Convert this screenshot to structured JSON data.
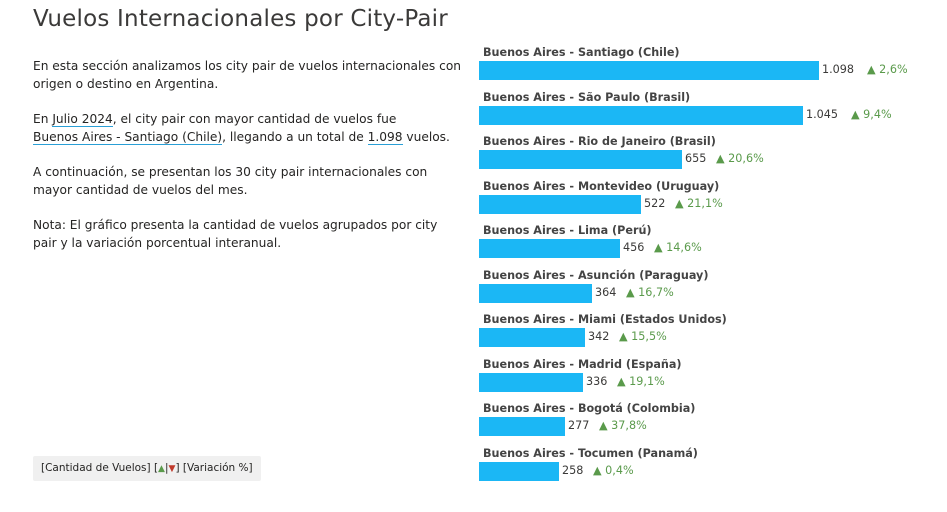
{
  "page": {
    "title": "Vuelos Internacionales por City-Pair"
  },
  "intro": {
    "p1": "En esta sección analizamos los city pair de vuelos internacionales con origen o destino en Argentina.",
    "p2_pre": "En ",
    "p2_month": "Julio 2024",
    "p2_mid": ", el city pair con mayor cantidad de vuelos fue",
    "p2_pair": "Buenos Aires - Santiago (Chile)",
    "p2_mid2": ", llegando a un total de ",
    "p2_total": "1.098",
    "p2_post": " vuelos.",
    "p3": "A continuación, se presentan los 30 city pair internacionales con mayor cantidad de vuelos del mes.",
    "p4": "Nota: El gráfico presenta la cantidad de vuelos agrupados por city pair y la variación porcentual interanual."
  },
  "legend": {
    "part1": "[Cantidad de Vuelos] [",
    "up": "▲",
    "sep": "|",
    "down": "▼",
    "part2": "] [Variación %]"
  },
  "colors": {
    "bar": "#1bb7f5",
    "positive": "#5a9a4b",
    "negative": "#c0392b"
  },
  "chart_data": {
    "type": "bar",
    "orientation": "horizontal",
    "categories": [
      "Buenos Aires - Santiago (Chile)",
      "Buenos Aires - São Paulo (Brasil)",
      "Buenos Aires - Rio de Janeiro (Brasil)",
      "Buenos Aires - Montevideo (Uruguay)",
      "Buenos Aires - Lima (Perú)",
      "Buenos Aires - Asunción (Paraguay)",
      "Buenos Aires - Miami (Estados Unidos)",
      "Buenos Aires - Madrid (España)",
      "Buenos Aires - Bogotá (Colombia)",
      "Buenos Aires - Tocumen (Panamá)"
    ],
    "values": [
      1098,
      1045,
      655,
      522,
      456,
      364,
      342,
      336,
      277,
      258
    ],
    "value_labels": [
      "1.098",
      "1.045",
      "655",
      "522",
      "456",
      "364",
      "342",
      "336",
      "277",
      "258"
    ],
    "variation_labels": [
      "▲ 2,6%",
      "▲ 9,4%",
      "▲ 20,6%",
      "▲ 21,1%",
      "▲ 14,6%",
      "▲ 16,7%",
      "▲ 15,5%",
      "▲ 19,1%",
      "▲ 37,8%",
      "▲ 0,4%"
    ],
    "variation_pct": [
      2.6,
      9.4,
      20.6,
      21.1,
      14.6,
      16.7,
      15.5,
      19.1,
      37.8,
      0.4
    ],
    "xlim": [
      0,
      1098
    ],
    "grid": false,
    "legend": "bottom-left"
  }
}
